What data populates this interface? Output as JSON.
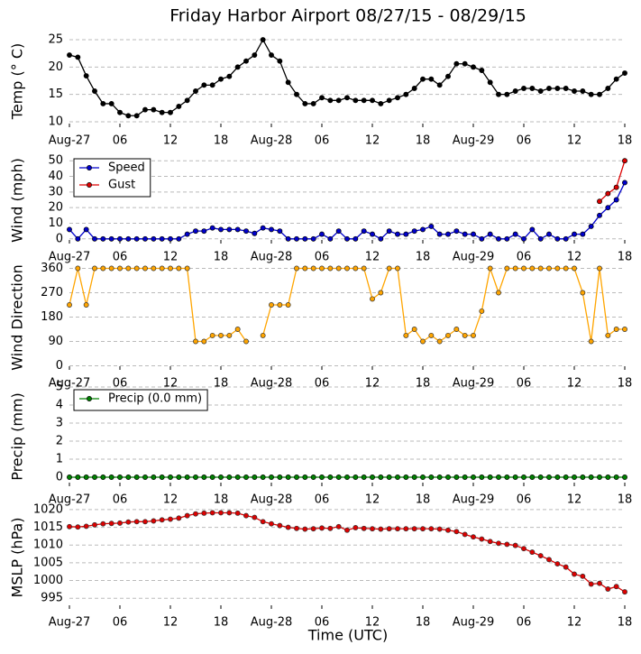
{
  "title": "Friday Harbor Airport 08/27/15 - 08/29/15",
  "xlabel": "Time (UTC)",
  "chart_data": [
    {
      "type": "line",
      "ylabel": "Temp (° C)",
      "x": [
        0,
        1,
        2,
        3,
        4,
        5,
        6,
        7,
        8,
        9,
        10,
        11,
        12,
        13,
        14,
        15,
        16,
        17,
        18,
        19,
        20,
        21,
        22,
        23,
        24,
        25,
        26,
        27,
        28,
        29,
        30,
        31,
        32,
        33,
        34,
        35,
        36,
        37,
        38,
        39,
        40,
        41,
        42,
        43,
        44,
        45,
        46,
        47,
        48,
        49,
        50,
        51,
        52,
        53,
        54,
        55,
        56,
        57,
        58,
        59,
        60,
        61,
        62,
        63,
        64,
        65,
        66
      ],
      "xlim": [
        0,
        66
      ],
      "xticks": [
        {
          "value": 0,
          "label": "Aug-27"
        },
        {
          "value": 6,
          "label": "06"
        },
        {
          "value": 12,
          "label": "12"
        },
        {
          "value": 18,
          "label": "18"
        },
        {
          "value": 24,
          "label": "Aug-28"
        },
        {
          "value": 30,
          "label": "06"
        },
        {
          "value": 36,
          "label": "12"
        },
        {
          "value": 42,
          "label": "18"
        },
        {
          "value": 48,
          "label": "Aug-29"
        },
        {
          "value": 54,
          "label": "06"
        },
        {
          "value": 60,
          "label": "12"
        },
        {
          "value": 66,
          "label": "18"
        }
      ],
      "ylim": [
        9,
        26
      ],
      "yticks": [
        10,
        15,
        20,
        25
      ],
      "grid": true,
      "series": [
        {
          "color": "#000000",
          "values": [
            22.2,
            21.8,
            18.4,
            15.6,
            13.3,
            13.3,
            11.7,
            11.1,
            11.1,
            12.2,
            12.2,
            11.7,
            11.7,
            12.8,
            13.9,
            15.6,
            16.7,
            16.7,
            17.8,
            18.3,
            20,
            21.1,
            22.2,
            25,
            22.2,
            21.1,
            17.2,
            15,
            13.3,
            13.3,
            14.4,
            13.9,
            13.9,
            14.4,
            13.9,
            13.9,
            13.9,
            13.3,
            13.9,
            14.4,
            15,
            16.1,
            17.8,
            17.8,
            16.7,
            18.3,
            20.6,
            20.6,
            20,
            19.4,
            17.2,
            15,
            15,
            15.6,
            16.1,
            16.1,
            15.6,
            16.1,
            16.1,
            16.1,
            15.6,
            15.6,
            15,
            15,
            16.1,
            17.8,
            18.9
          ]
        }
      ]
    },
    {
      "type": "line",
      "ylabel": "Wind (mph)",
      "x": [
        0,
        1,
        2,
        3,
        4,
        5,
        6,
        7,
        8,
        9,
        10,
        11,
        12,
        13,
        14,
        15,
        16,
        17,
        18,
        19,
        20,
        21,
        22,
        23,
        24,
        25,
        26,
        27,
        28,
        29,
        30,
        31,
        32,
        33,
        34,
        35,
        36,
        37,
        38,
        39,
        40,
        41,
        42,
        43,
        44,
        45,
        46,
        47,
        48,
        49,
        50,
        51,
        52,
        53,
        54,
        55,
        56,
        57,
        58,
        59,
        60,
        61,
        62,
        63,
        64,
        65,
        66
      ],
      "xlim": [
        0,
        66
      ],
      "xticks": [
        {
          "value": 0,
          "label": "Aug-27"
        },
        {
          "value": 6,
          "label": "06"
        },
        {
          "value": 12,
          "label": "12"
        },
        {
          "value": 18,
          "label": "18"
        },
        {
          "value": 24,
          "label": "Aug-28"
        },
        {
          "value": 30,
          "label": "06"
        },
        {
          "value": 36,
          "label": "12"
        },
        {
          "value": 42,
          "label": "18"
        },
        {
          "value": 48,
          "label": "Aug-29"
        },
        {
          "value": 54,
          "label": "06"
        },
        {
          "value": 60,
          "label": "12"
        },
        {
          "value": 66,
          "label": "18"
        }
      ],
      "ylim": [
        -3,
        53
      ],
      "yticks": [
        0,
        10,
        20,
        30,
        40,
        50
      ],
      "grid": true,
      "legend": "upper left",
      "series": [
        {
          "name": "Speed",
          "color": "#0000cc",
          "values": [
            6,
            0,
            6,
            0,
            0,
            0,
            0,
            0,
            0,
            0,
            0,
            0,
            0,
            0,
            3,
            5,
            5,
            7,
            6,
            6,
            6,
            5,
            3.5,
            7,
            6,
            5,
            0,
            0,
            0,
            0,
            3,
            0,
            5,
            0,
            0,
            5,
            3,
            0,
            5,
            3,
            3,
            5,
            6,
            8,
            3,
            3,
            5,
            3,
            3,
            0,
            3,
            0,
            0,
            3,
            0,
            6,
            0,
            3,
            0,
            0,
            3,
            3,
            8,
            15,
            20,
            25,
            36
          ]
        },
        {
          "name": "Gust",
          "color": "#dd0000",
          "values": [
            null,
            null,
            null,
            null,
            null,
            null,
            null,
            null,
            null,
            null,
            null,
            null,
            null,
            null,
            null,
            null,
            null,
            null,
            null,
            null,
            null,
            null,
            null,
            null,
            null,
            null,
            null,
            null,
            null,
            null,
            null,
            null,
            null,
            null,
            null,
            null,
            null,
            null,
            null,
            null,
            null,
            null,
            null,
            null,
            null,
            null,
            null,
            null,
            null,
            null,
            null,
            null,
            null,
            null,
            null,
            null,
            null,
            null,
            null,
            null,
            null,
            null,
            null,
            24,
            29,
            33,
            50
          ]
        }
      ]
    },
    {
      "type": "line",
      "ylabel": "Wind Direction",
      "x": [
        0,
        1,
        2,
        3,
        4,
        5,
        6,
        7,
        8,
        9,
        10,
        11,
        12,
        13,
        14,
        15,
        16,
        17,
        18,
        19,
        20,
        21,
        22,
        23,
        24,
        25,
        26,
        27,
        28,
        29,
        30,
        31,
        32,
        33,
        34,
        35,
        36,
        37,
        38,
        39,
        40,
        41,
        42,
        43,
        44,
        45,
        46,
        47,
        48,
        49,
        50,
        51,
        52,
        53,
        54,
        55,
        56,
        57,
        58,
        59,
        60,
        61,
        62,
        63,
        64,
        65,
        66
      ],
      "xlim": [
        0,
        66
      ],
      "xticks": [
        {
          "value": 0,
          "label": "Aug-27"
        },
        {
          "value": 6,
          "label": "06"
        },
        {
          "value": 12,
          "label": "12"
        },
        {
          "value": 18,
          "label": "18"
        },
        {
          "value": 24,
          "label": "Aug-28"
        },
        {
          "value": 30,
          "label": "06"
        },
        {
          "value": 36,
          "label": "12"
        },
        {
          "value": 42,
          "label": "18"
        },
        {
          "value": 48,
          "label": "Aug-29"
        },
        {
          "value": 54,
          "label": "06"
        },
        {
          "value": 60,
          "label": "12"
        },
        {
          "value": 66,
          "label": "18"
        }
      ],
      "ylim": [
        -15,
        365
      ],
      "yticks": [
        0,
        90,
        180,
        270,
        360
      ],
      "grid": true,
      "series": [
        {
          "color": "#ffa500",
          "values": [
            225,
            360,
            225,
            360,
            360,
            360,
            360,
            360,
            360,
            360,
            360,
            360,
            360,
            360,
            360,
            90,
            90,
            112,
            112,
            112,
            135,
            90,
            null,
            112,
            225,
            225,
            225,
            360,
            360,
            360,
            360,
            360,
            360,
            360,
            360,
            360,
            247,
            270,
            360,
            360,
            112,
            135,
            90,
            112,
            90,
            112,
            135,
            112,
            112,
            202,
            360,
            270,
            360,
            360,
            360,
            360,
            360,
            360,
            360,
            360,
            360,
            270,
            90,
            360,
            112,
            135,
            135
          ]
        }
      ]
    },
    {
      "type": "line",
      "ylabel": "Precip (mm)",
      "x": [
        0,
        1,
        2,
        3,
        4,
        5,
        6,
        7,
        8,
        9,
        10,
        11,
        12,
        13,
        14,
        15,
        16,
        17,
        18,
        19,
        20,
        21,
        22,
        23,
        24,
        25,
        26,
        27,
        28,
        29,
        30,
        31,
        32,
        33,
        34,
        35,
        36,
        37,
        38,
        39,
        40,
        41,
        42,
        43,
        44,
        45,
        46,
        47,
        48,
        49,
        50,
        51,
        52,
        53,
        54,
        55,
        56,
        57,
        58,
        59,
        60,
        61,
        62,
        63,
        64,
        65,
        66
      ],
      "xlim": [
        0,
        66
      ],
      "xticks": [
        {
          "value": 0,
          "label": "Aug-27"
        },
        {
          "value": 6,
          "label": "06"
        },
        {
          "value": 12,
          "label": "12"
        },
        {
          "value": 18,
          "label": "18"
        },
        {
          "value": 24,
          "label": "Aug-28"
        },
        {
          "value": 30,
          "label": "06"
        },
        {
          "value": 36,
          "label": "12"
        },
        {
          "value": 42,
          "label": "18"
        },
        {
          "value": 48,
          "label": "Aug-29"
        },
        {
          "value": 54,
          "label": "06"
        },
        {
          "value": 60,
          "label": "12"
        },
        {
          "value": 66,
          "label": "18"
        }
      ],
      "ylim": [
        -0.5,
        5
      ],
      "yticks": [
        0,
        1,
        2,
        3,
        4,
        5
      ],
      "grid": true,
      "legend": "upper left",
      "series": [
        {
          "name": "Precip (0.0 mm)",
          "color": "#008000",
          "values": [
            0,
            0,
            0,
            0,
            0,
            0,
            0,
            0,
            0,
            0,
            0,
            0,
            0,
            0,
            0,
            0,
            0,
            0,
            0,
            0,
            0,
            0,
            0,
            0,
            0,
            0,
            0,
            0,
            0,
            0,
            0,
            0,
            0,
            0,
            0,
            0,
            0,
            0,
            0,
            0,
            0,
            0,
            0,
            0,
            0,
            0,
            0,
            0,
            0,
            0,
            0,
            0,
            0,
            0,
            0,
            0,
            0,
            0,
            0,
            0,
            0,
            0,
            0,
            0,
            0,
            0,
            0
          ]
        }
      ]
    },
    {
      "type": "line",
      "ylabel": "MSLP (hPa)",
      "x": [
        0,
        1,
        2,
        3,
        4,
        5,
        6,
        7,
        8,
        9,
        10,
        11,
        12,
        13,
        14,
        15,
        16,
        17,
        18,
        19,
        20,
        21,
        22,
        23,
        24,
        25,
        26,
        27,
        28,
        29,
        30,
        31,
        32,
        33,
        34,
        35,
        36,
        37,
        38,
        39,
        40,
        41,
        42,
        43,
        44,
        45,
        46,
        47,
        48,
        49,
        50,
        51,
        52,
        53,
        54,
        55,
        56,
        57,
        58,
        59,
        60,
        61,
        62,
        63,
        64,
        65,
        66
      ],
      "xlim": [
        0,
        66
      ],
      "xticks": [
        {
          "value": 0,
          "label": "Aug-27"
        },
        {
          "value": 6,
          "label": "06"
        },
        {
          "value": 12,
          "label": "12"
        },
        {
          "value": 18,
          "label": "18"
        },
        {
          "value": 24,
          "label": "Aug-28"
        },
        {
          "value": 30,
          "label": "06"
        },
        {
          "value": 36,
          "label": "12"
        },
        {
          "value": 42,
          "label": "18"
        },
        {
          "value": 48,
          "label": "Aug-29"
        },
        {
          "value": 54,
          "label": "06"
        },
        {
          "value": 60,
          "label": "12"
        },
        {
          "value": 66,
          "label": "18"
        }
      ],
      "ylim": [
        992,
        1021
      ],
      "yticks": [
        995,
        1000,
        1005,
        1010,
        1015,
        1020
      ],
      "grid": true,
      "series": [
        {
          "color": "#dd0000",
          "values": [
            1015.2,
            1015.1,
            1015.3,
            1015.7,
            1016,
            1016.1,
            1016.2,
            1016.5,
            1016.6,
            1016.6,
            1016.8,
            1017.1,
            1017.3,
            1017.6,
            1018.3,
            1018.8,
            1019,
            1019.1,
            1019.1,
            1019.1,
            1019,
            1018.3,
            1017.8,
            1016.6,
            1016,
            1015.5,
            1015,
            1014.7,
            1014.5,
            1014.6,
            1014.8,
            1014.7,
            1015.2,
            1014.2,
            1014.9,
            1014.7,
            1014.6,
            1014.5,
            1014.6,
            1014.6,
            1014.6,
            1014.6,
            1014.6,
            1014.6,
            1014.5,
            1014.2,
            1013.8,
            1013,
            1012.3,
            1011.7,
            1011,
            1010.5,
            1010.2,
            1009.9,
            1009,
            1008,
            1007,
            1005.9,
            1004.7,
            1003.8,
            1001.8,
            1001.2,
            999,
            999.2,
            997.6,
            998.3,
            996.8
          ]
        }
      ]
    }
  ]
}
